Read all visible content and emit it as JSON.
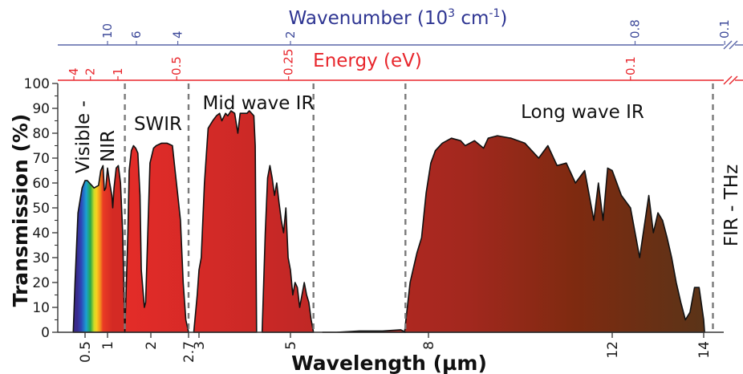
{
  "chart_data": {
    "type": "area",
    "title": "",
    "xlabel": "Wavelength (µm)",
    "ylabel": "Transmission (%)",
    "ylim": [
      0,
      100
    ],
    "yticks": [
      0,
      10,
      20,
      30,
      40,
      50,
      60,
      70,
      80,
      90,
      100
    ],
    "xticks": [
      {
        "value": 0.5,
        "label": "0.5"
      },
      {
        "value": 1,
        "label": "1"
      },
      {
        "value": 2,
        "label": "2"
      },
      {
        "value": 2.7,
        "label": "2.7"
      },
      {
        "value": 3,
        "label": "3"
      },
      {
        "value": 5,
        "label": "5"
      },
      {
        "value": 8,
        "label": "8"
      },
      {
        "value": 12,
        "label": "12"
      },
      {
        "value": 14,
        "label": "14"
      }
    ],
    "energy_axis": {
      "label": "Energy (eV)",
      "color": "#e8262c",
      "ticks": [
        {
          "wavelength": 0.31,
          "label": "4"
        },
        {
          "wavelength": 0.62,
          "label": "2"
        },
        {
          "wavelength": 1.24,
          "label": "1"
        },
        {
          "wavelength": 2.48,
          "label": "0.5"
        },
        {
          "wavelength": 4.96,
          "label": "0.25"
        },
        {
          "wavelength": 12.4,
          "label": "0.1"
        }
      ]
    },
    "wavenumber_axis": {
      "label": "Wavenumber (10",
      "label_sup": "3",
      "label_unit": " cm",
      "label_unit_sup": "-1",
      "label_end": ")",
      "color": "#3e4a9a",
      "ticks": [
        {
          "wavelength": 1.0,
          "label": "10"
        },
        {
          "wavelength": 1.667,
          "label": "6"
        },
        {
          "wavelength": 2.5,
          "label": "4"
        },
        {
          "wavelength": 5.0,
          "label": "2"
        },
        {
          "wavelength": 12.5,
          "label": "0.8"
        },
        {
          "wavelength": 18.2,
          "label": "0.1"
        }
      ]
    },
    "boundaries": [
      1.4,
      2.7,
      5.5,
      7.5,
      14.5
    ],
    "regions": [
      {
        "label": "Visible -",
        "vertical": true
      },
      {
        "label": "NIR",
        "vertical": true
      },
      {
        "label": "SWIR",
        "vertical": false
      },
      {
        "label": "Mid wave IR",
        "vertical": false
      },
      {
        "label": "Long wave IR",
        "vertical": false
      },
      {
        "label": "FIR - THz",
        "vertical": true
      }
    ],
    "series": [
      {
        "x": [
          0.3,
          0.33,
          0.38,
          0.45,
          0.5,
          0.55,
          0.6,
          0.7,
          0.8,
          0.85,
          0.9,
          0.93,
          0.96,
          1.0,
          1.05,
          1.1,
          1.12,
          1.15,
          1.2,
          1.25,
          1.3,
          1.35,
          1.38,
          1.4
        ],
        "y": [
          0,
          20,
          48,
          58,
          61,
          61,
          60,
          58,
          59,
          65,
          67,
          57,
          58,
          66,
          60,
          55,
          50,
          58,
          66,
          67,
          60,
          40,
          15,
          0
        ]
      },
      {
        "x": [
          1.4,
          1.47,
          1.5,
          1.55,
          1.6,
          1.65,
          1.7,
          1.75,
          1.78,
          1.85,
          1.88,
          1.93,
          1.98,
          2.05,
          2.1,
          2.2,
          2.3,
          2.4,
          2.45,
          2.5,
          2.55,
          2.6,
          2.65,
          2.7
        ],
        "y": [
          0,
          40,
          65,
          73,
          75,
          74,
          72,
          55,
          25,
          10,
          12,
          40,
          68,
          74,
          75,
          76,
          76,
          75,
          65,
          55,
          45,
          20,
          5,
          0
        ]
      },
      {
        "x": [
          2.85,
          2.95,
          3.0,
          3.05,
          3.12,
          3.2,
          3.3,
          3.38,
          3.45,
          3.5,
          3.58,
          3.63,
          3.7,
          3.78,
          3.85,
          3.9,
          4.0,
          4.05,
          4.1,
          4.15,
          4.2,
          4.23,
          4.26
        ],
        "y": [
          0,
          15,
          25,
          30,
          60,
          82,
          85,
          87,
          88,
          85,
          88,
          87,
          89,
          88,
          80,
          88,
          88,
          88,
          89,
          88,
          87,
          75,
          0
        ]
      },
      {
        "x": [
          4.38,
          4.45,
          4.5,
          4.55,
          4.6,
          4.65,
          4.7,
          4.75,
          4.8,
          4.85,
          4.9,
          4.95,
          5.0,
          5.05,
          5.1,
          5.15,
          5.2,
          5.3,
          5.35,
          5.4,
          5.45,
          5.5
        ],
        "y": [
          0,
          40,
          62,
          67,
          62,
          55,
          60,
          52,
          45,
          40,
          50,
          30,
          25,
          15,
          20,
          18,
          10,
          20,
          15,
          12,
          5,
          0
        ]
      },
      {
        "x": [
          5.7,
          6.0,
          6.5,
          7.0,
          7.4,
          7.5
        ],
        "y": [
          0,
          0,
          0.5,
          0.5,
          1,
          0
        ]
      },
      {
        "x": [
          7.48,
          7.6,
          7.75,
          7.85,
          7.95,
          8.05,
          8.15,
          8.3,
          8.5,
          8.7,
          8.8,
          9.0,
          9.2,
          9.3,
          9.5,
          9.8,
          10.1,
          10.4,
          10.6,
          10.8,
          11.0,
          11.2,
          11.4,
          11.6,
          11.7,
          11.8,
          11.9,
          12.0,
          12.2,
          12.4,
          12.6,
          12.8,
          12.9,
          13.0,
          13.1,
          13.2,
          13.3,
          13.4,
          13.5,
          13.6,
          13.7,
          13.8,
          13.9,
          14.0,
          14.05
        ],
        "y": [
          0,
          20,
          32,
          38,
          56,
          68,
          73,
          76,
          78,
          77,
          75,
          77,
          74,
          78,
          79,
          78,
          76,
          70,
          75,
          67,
          68,
          60,
          65,
          45,
          60,
          45,
          66,
          65,
          55,
          50,
          30,
          55,
          40,
          48,
          45,
          38,
          30,
          20,
          12,
          5,
          8,
          18,
          18,
          5,
          0
        ]
      }
    ]
  }
}
